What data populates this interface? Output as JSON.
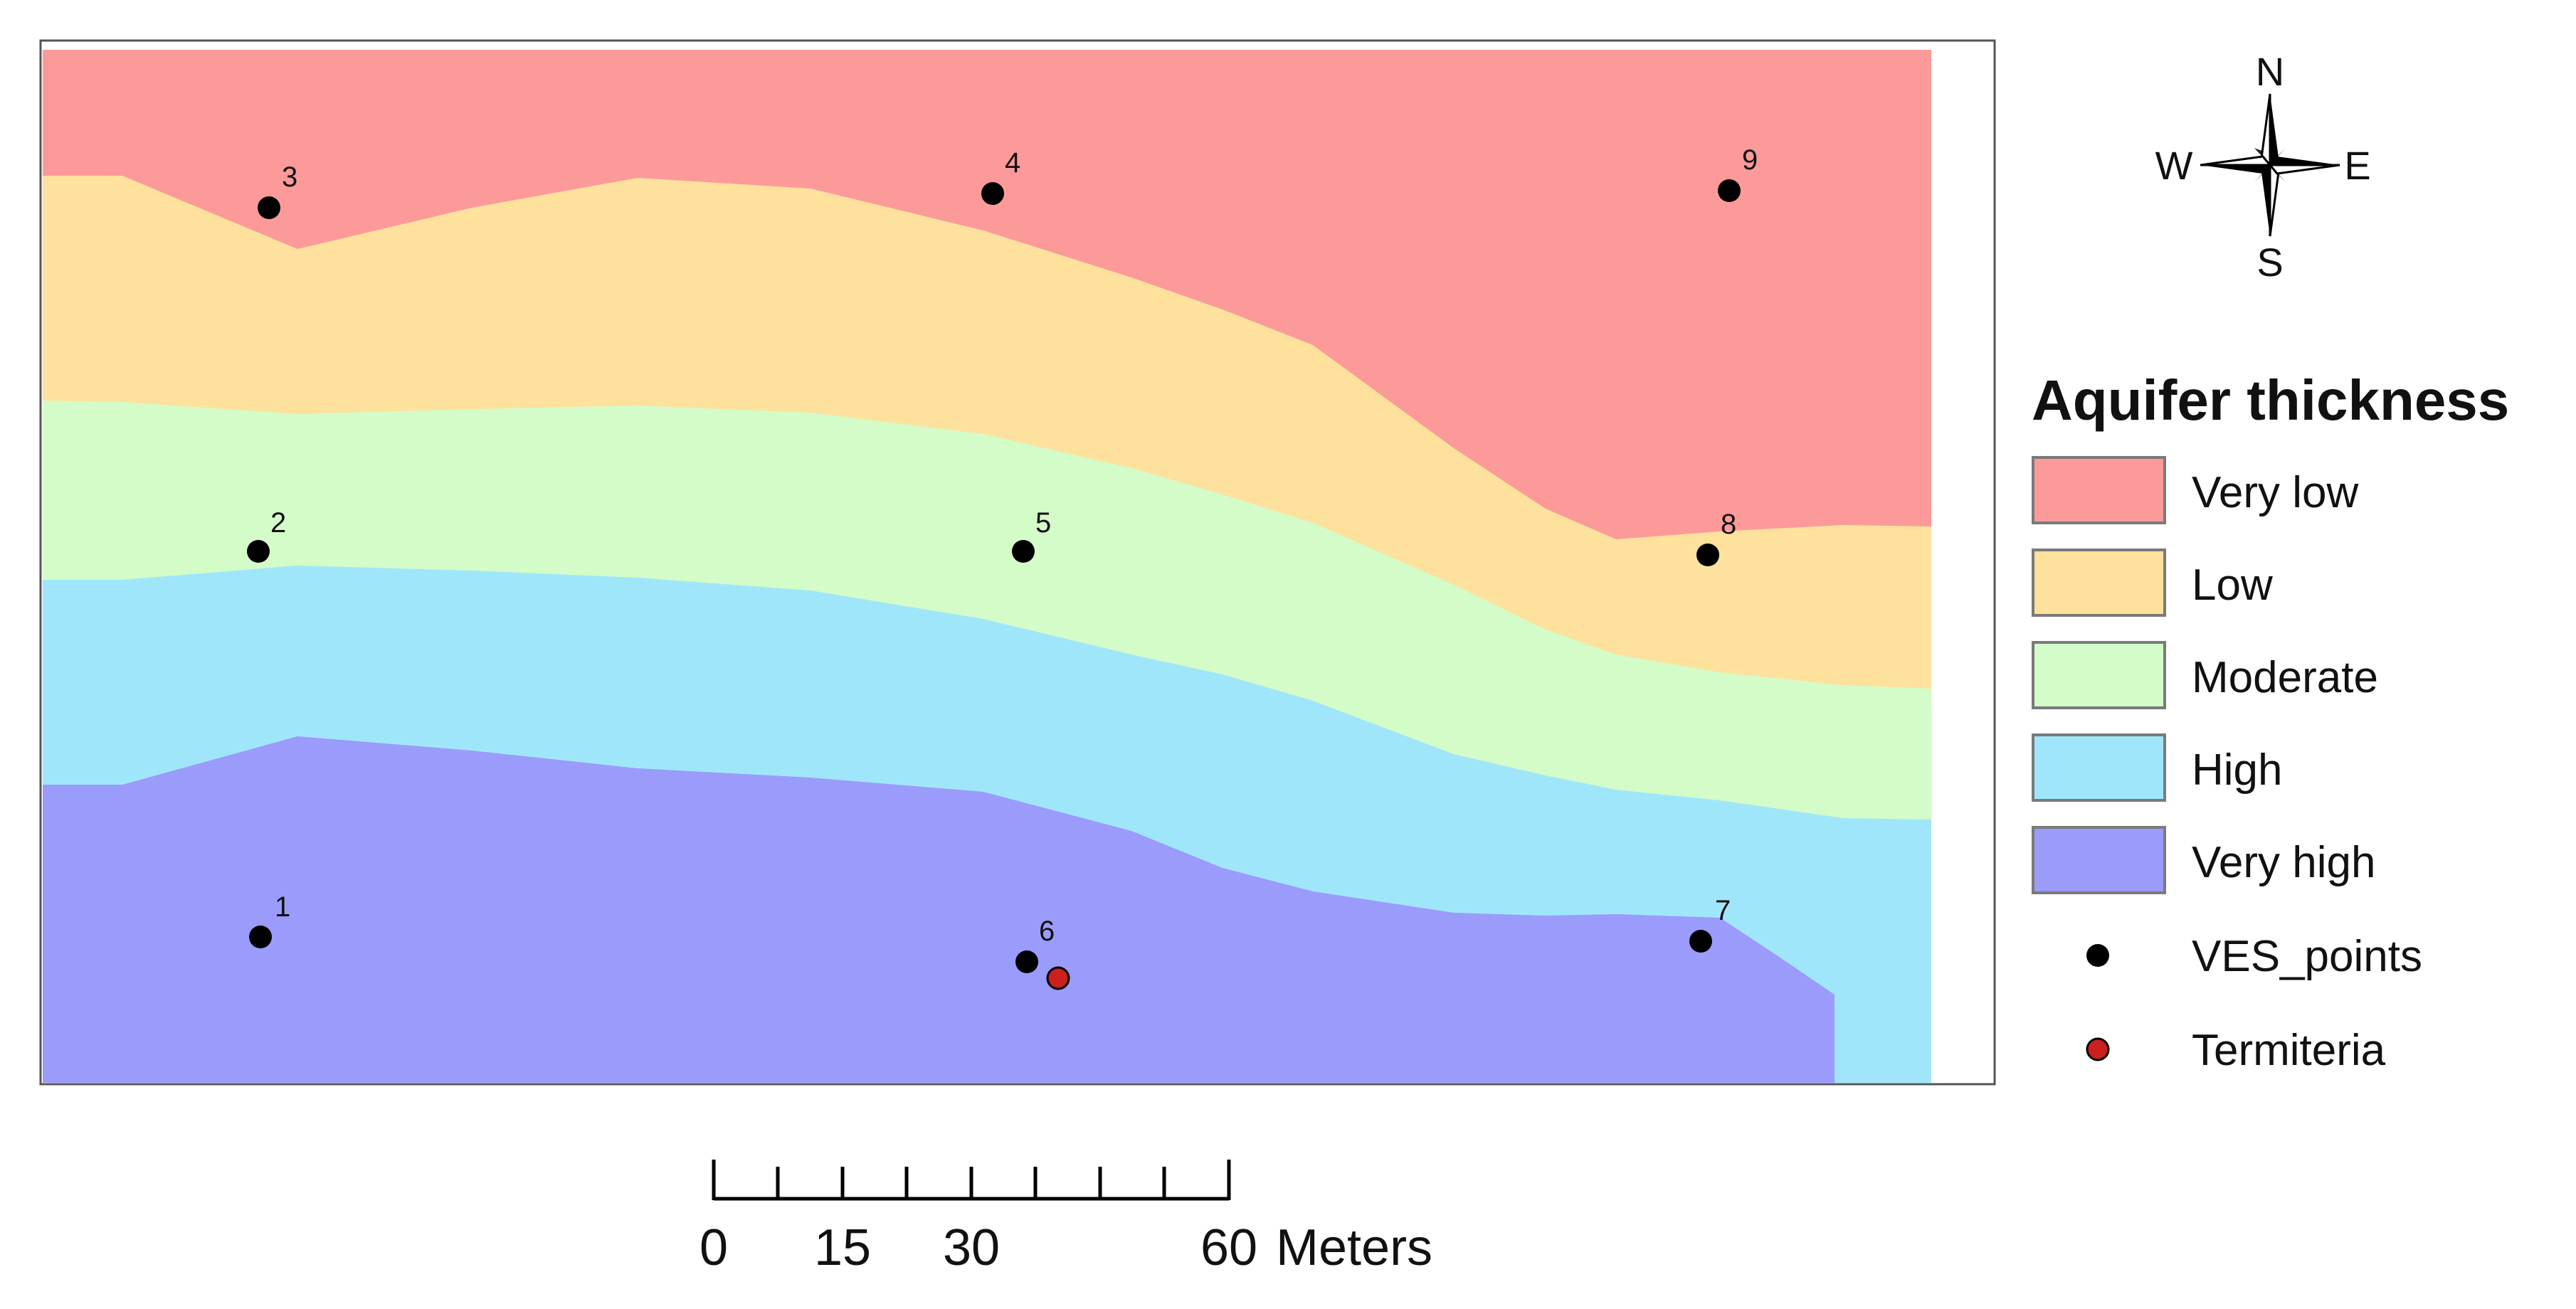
{
  "map": {
    "zones": [
      {
        "id": "very-low",
        "label": "Very low",
        "color": "#fc9a9a"
      },
      {
        "id": "low",
        "label": "Low",
        "color": "#fde19c"
      },
      {
        "id": "moderate",
        "label": "Moderate",
        "color": "#d3fcc9"
      },
      {
        "id": "high",
        "label": "High",
        "color": "#a0e6fb"
      },
      {
        "id": "very-high",
        "label": "Very high",
        "color": "#9b9bfb"
      }
    ],
    "ves_points": [
      {
        "label": "1"
      },
      {
        "label": "2"
      },
      {
        "label": "3"
      },
      {
        "label": "4"
      },
      {
        "label": "5"
      },
      {
        "label": "6"
      },
      {
        "label": "7"
      },
      {
        "label": "8"
      },
      {
        "label": "9"
      }
    ]
  },
  "legend": {
    "title": "Aquifer thickness",
    "items": [
      {
        "label": "Very low",
        "color": "#fc9a9a"
      },
      {
        "label": "Low",
        "color": "#fde19c"
      },
      {
        "label": "Moderate",
        "color": "#d3fcc9"
      },
      {
        "label": "High",
        "color": "#a0e6fb"
      },
      {
        "label": "Very high",
        "color": "#9b9bfb"
      }
    ],
    "points_label": "VES_points",
    "points_color": "#000000",
    "termiteria_label": "Termiteria",
    "termiteria_color": "#cc1f1f"
  },
  "compass": {
    "n": "N",
    "s": "S",
    "e": "E",
    "w": "W"
  },
  "scalebar": {
    "ticks": [
      "0",
      "15",
      "30",
      "60"
    ],
    "unit": "Meters"
  }
}
